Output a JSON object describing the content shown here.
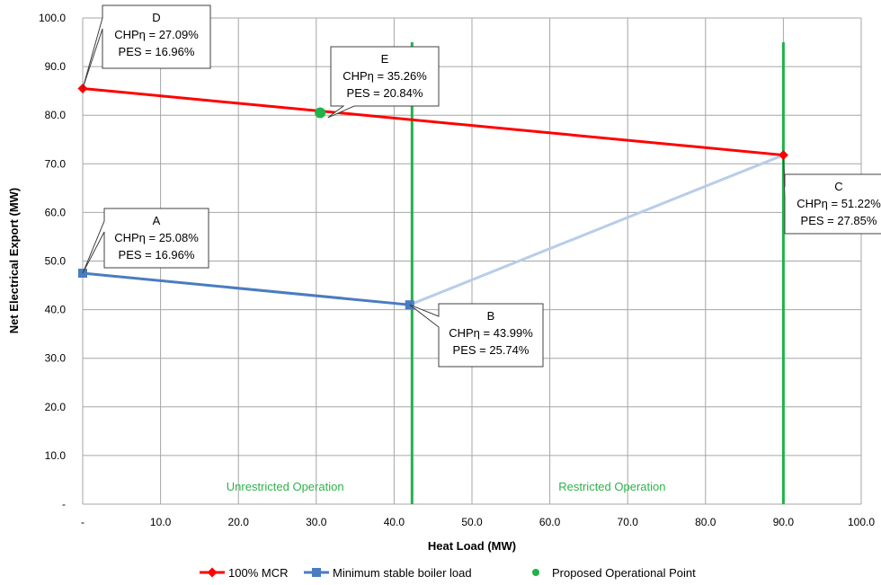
{
  "chart_data": {
    "type": "line",
    "xlabel": "Heat Load (MW)",
    "ylabel": "Net Electrical Export (MW)",
    "xlim": [
      0,
      100
    ],
    "ylim": [
      0,
      100
    ],
    "x_ticks": [
      "-",
      "10.0",
      "20.0",
      "30.0",
      "40.0",
      "50.0",
      "60.0",
      "70.0",
      "80.0",
      "90.0",
      "100.0"
    ],
    "y_ticks": [
      "-",
      "10.0",
      "20.0",
      "30.0",
      "40.0",
      "50.0",
      "60.0",
      "70.0",
      "80.0",
      "90.0",
      "100.0"
    ],
    "grid": true,
    "legend_position": "bottom",
    "series": [
      {
        "name": "100% MCR",
        "color": "#ff0000",
        "marker": "diamond",
        "x": [
          0,
          90
        ],
        "y": [
          85.5,
          71.8
        ]
      },
      {
        "name": "Minimum stable boiler load",
        "color": "#4a7cc0",
        "marker": "square",
        "x": [
          0,
          42
        ],
        "y": [
          47.5,
          41
        ]
      },
      {
        "name": "Proposed Operational Point",
        "color": "#1fb34a",
        "marker": "circle",
        "x": [
          30.5
        ],
        "y": [
          80.5
        ]
      }
    ],
    "connector": {
      "color": "#b8cde9",
      "x": [
        42,
        90
      ],
      "y": [
        41,
        71.8
      ]
    },
    "vertical_lines": [
      {
        "x": 42.3,
        "y": [
          0,
          95
        ],
        "color": "#1fb34a"
      },
      {
        "x": 90,
        "y": [
          0,
          95
        ],
        "color": "#1fb34a"
      }
    ],
    "regions": [
      {
        "label": "Unrestricted Operation",
        "x": 26
      },
      {
        "label": "Restricted Operation",
        "x": 68
      }
    ],
    "annotations": [
      {
        "id": "D",
        "lines": [
          "D",
          "CHPη = 27.09%",
          "PES = 16.96%"
        ],
        "point": [
          0,
          85.5
        ]
      },
      {
        "id": "E",
        "lines": [
          "E",
          "CHPη = 35.26%",
          "PES = 20.84%"
        ],
        "point": [
          31.5,
          79.5
        ]
      },
      {
        "id": "A",
        "lines": [
          "A",
          "CHPη = 25.08%",
          "PES = 16.96%"
        ],
        "point": [
          0,
          47.5
        ]
      },
      {
        "id": "B",
        "lines": [
          "B",
          "CHPη = 43.99%",
          "PES = 25.74%"
        ],
        "point": [
          42,
          41
        ]
      },
      {
        "id": "C",
        "lines": [
          "C",
          "CHPη = 51.22%",
          "PES = 27.85%"
        ],
        "point": [
          90,
          71.8
        ]
      }
    ]
  }
}
